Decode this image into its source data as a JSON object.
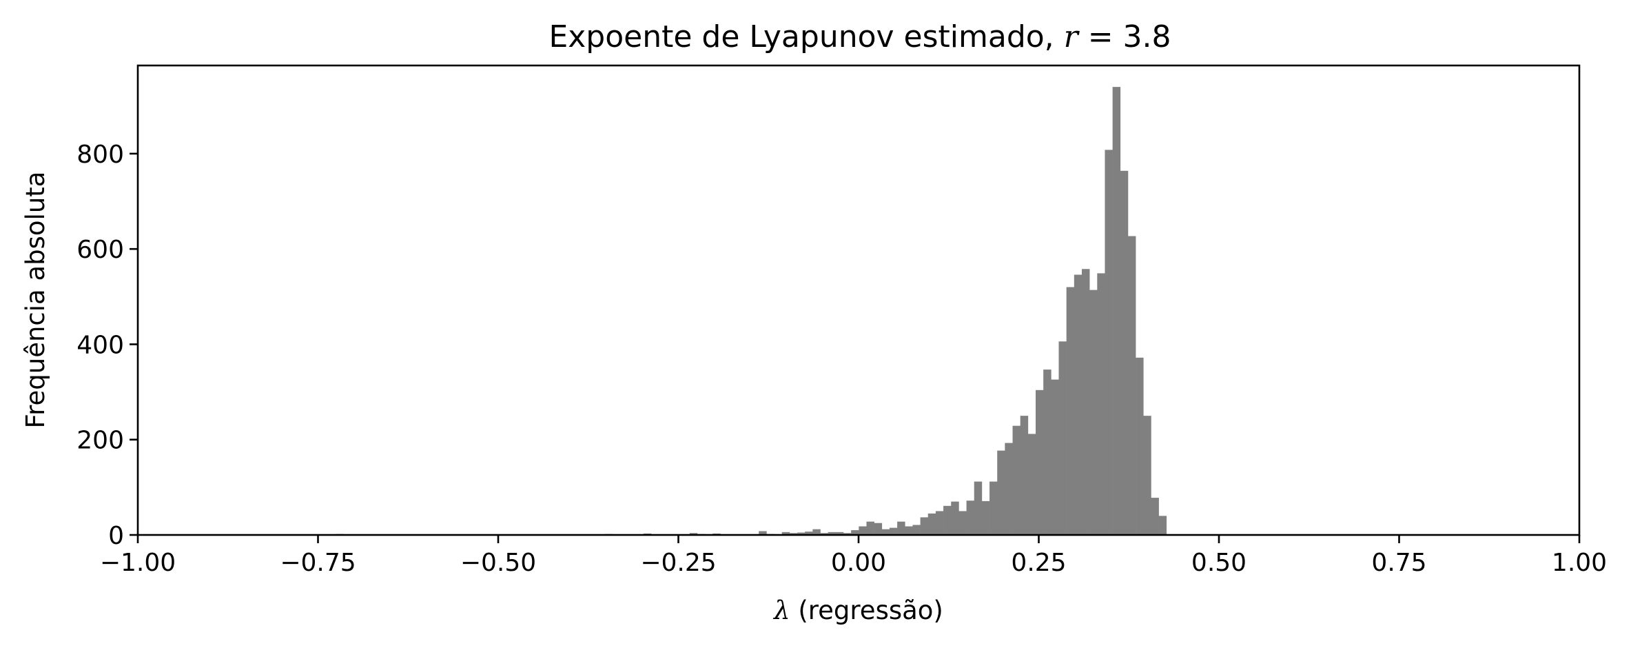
{
  "chart_data": {
    "type": "bar",
    "title": "Expoente de Lyapunov estimado, ",
    "title_var": "r",
    "title_eq": " = 3.8",
    "xlabel_symbol": "λ",
    "xlabel": " (regressão)",
    "ylabel": "Frequência absoluta",
    "xlim": [
      -1.0,
      1.0
    ],
    "ylim": [
      0,
      985
    ],
    "xticks": [
      -1.0,
      -0.75,
      -0.5,
      -0.25,
      0.0,
      0.25,
      0.5,
      0.75,
      1.0
    ],
    "xtick_labels": [
      "−1.00",
      "−0.75",
      "−0.50",
      "−0.25",
      "0.00",
      "0.25",
      "0.50",
      "0.75",
      "1.00"
    ],
    "yticks": [
      0,
      200,
      400,
      600,
      800
    ],
    "ytick_labels": [
      "0",
      "200",
      "400",
      "600",
      "800"
    ],
    "bar_color": "#808080",
    "bins_start": -0.7466,
    "bin_width": 0.01067,
    "values": [
      1,
      1,
      2,
      1,
      1,
      0,
      1,
      0,
      0,
      0,
      0,
      0,
      0,
      0,
      0,
      0,
      0,
      0,
      0,
      0,
      0,
      0,
      0,
      0,
      0,
      0,
      0,
      0,
      0,
      0,
      0,
      0,
      0,
      0,
      0,
      0,
      0,
      2,
      1,
      0,
      0,
      1,
      3,
      0,
      1,
      0,
      0,
      1,
      4,
      2,
      1,
      3,
      0,
      0,
      0,
      0,
      0,
      8,
      2,
      0,
      6,
      4,
      5,
      7,
      12,
      4,
      6,
      6,
      4,
      10,
      18,
      28,
      25,
      12,
      15,
      28,
      18,
      21,
      37,
      45,
      50,
      61,
      70,
      50,
      72,
      112,
      71,
      112,
      177,
      193,
      229,
      250,
      212,
      304,
      347,
      326,
      406,
      520,
      546,
      558,
      514,
      549,
      808,
      940,
      764,
      627,
      372,
      250,
      78,
      40
    ]
  }
}
